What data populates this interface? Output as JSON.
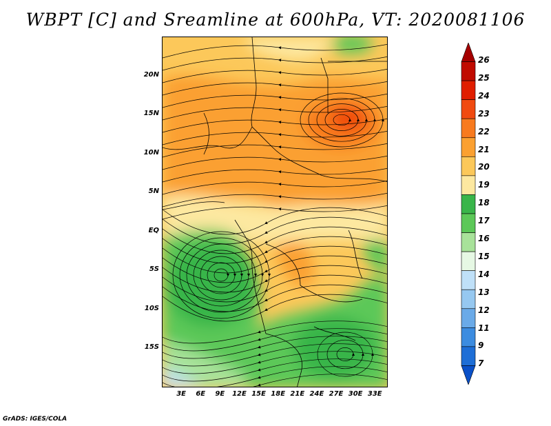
{
  "title": "WBPT [C] and Sreamline at 600hPa, VT: 2020081106",
  "footer": "GrADS: IGES/COLA",
  "map": {
    "lon_range": [
      0,
      35
    ],
    "lat_range": [
      -20,
      25
    ],
    "lat_ticks": [
      "20N",
      "15N",
      "10N",
      "5N",
      "EQ",
      "5S",
      "10S",
      "15S"
    ],
    "lat_values": [
      20,
      15,
      10,
      5,
      0,
      -5,
      -10,
      -15
    ],
    "lon_ticks": [
      "3E",
      "6E",
      "9E",
      "12E",
      "15E",
      "18E",
      "21E",
      "24E",
      "27E",
      "30E",
      "33E"
    ],
    "lon_values": [
      3,
      6,
      9,
      12,
      15,
      18,
      21,
      24,
      27,
      30,
      33
    ]
  },
  "colorbar": {
    "labels": [
      "26",
      "25",
      "24",
      "23",
      "22",
      "21",
      "20",
      "19",
      "18",
      "17",
      "16",
      "15",
      "14",
      "13",
      "12",
      "11",
      "9",
      "7"
    ],
    "colors": [
      "#a50000",
      "#c00a00",
      "#e01e00",
      "#f04a10",
      "#f87a1e",
      "#fba030",
      "#fcc85a",
      "#fde8a0",
      "#39b54a",
      "#5cc858",
      "#a8e29a",
      "#e6f8e4",
      "#bfe0f8",
      "#96c8f0",
      "#6aaae8",
      "#3c8ce0",
      "#1e6ed6",
      "#0a50c8"
    ]
  },
  "chart_data": {
    "type": "heatmap",
    "title": "WBPT [C] and Sreamline at 600hPa, VT: 2020081106",
    "xlabel": "",
    "ylabel": "",
    "x_range": [
      0,
      35
    ],
    "y_range": [
      -20,
      25
    ],
    "features": [
      {
        "region": "Northeast maximum near 29E, 15N",
        "value": 23
      },
      {
        "region": "Equatorial band north of EQ",
        "value": 19
      },
      {
        "region": "Gulf of Guinea cyclonic circulation near 8E, 5S",
        "value": 17
      },
      {
        "region": "Far southwest corner",
        "value": 14
      }
    ]
  }
}
